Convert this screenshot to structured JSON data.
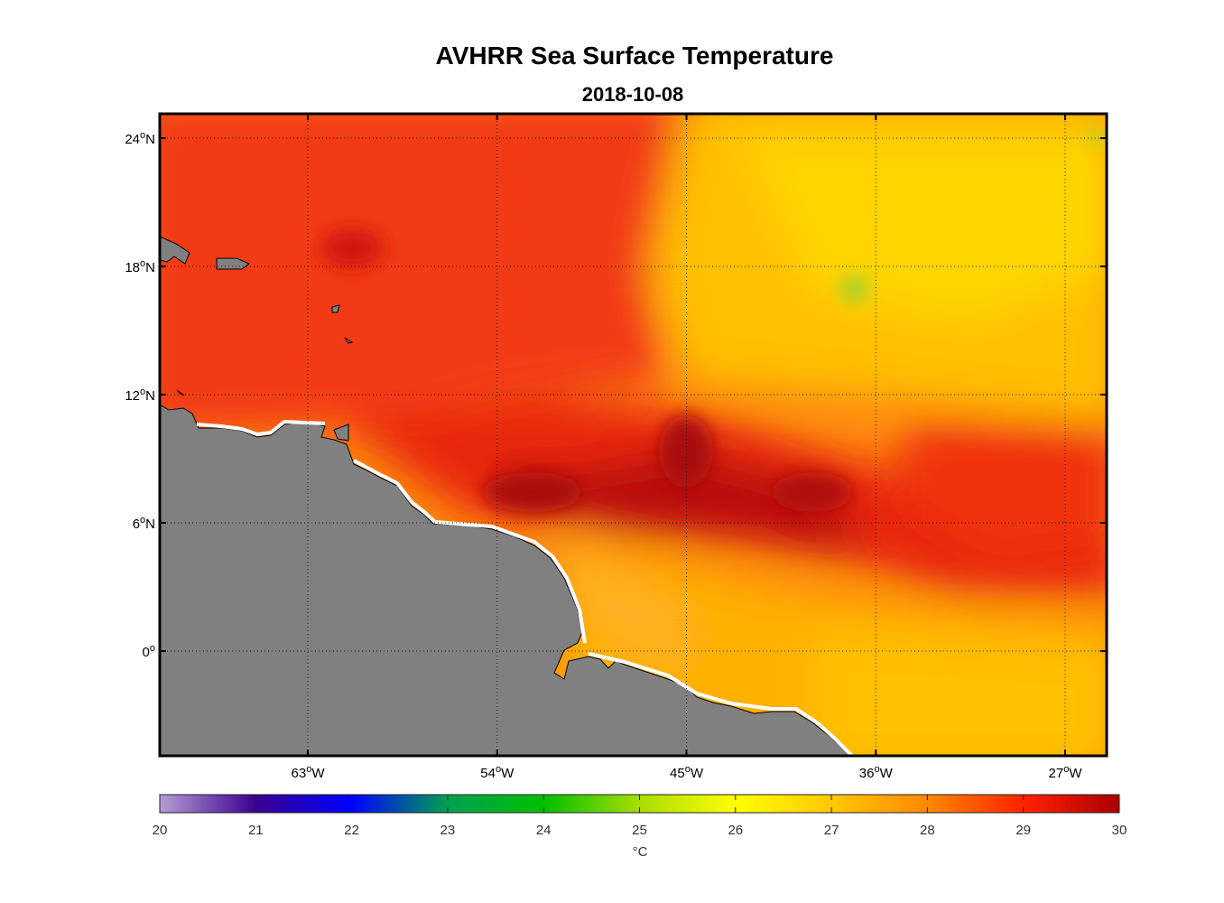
{
  "title": "AVHRR Sea Surface Temperature",
  "subtitle": "2018-10-08",
  "map": {
    "lat_ticks": [
      {
        "value": 24,
        "label": "24",
        "deg": "o",
        "hemi": "N"
      },
      {
        "value": 18,
        "label": "18",
        "deg": "o",
        "hemi": "N"
      },
      {
        "value": 12,
        "label": "12",
        "deg": "o",
        "hemi": "N"
      },
      {
        "value": 6,
        "label": "6",
        "deg": "o",
        "hemi": "N"
      },
      {
        "value": 0,
        "label": "0",
        "deg": "o",
        "hemi": ""
      }
    ],
    "lon_ticks": [
      {
        "value": -63,
        "label": "63",
        "deg": "o",
        "hemi": "W"
      },
      {
        "value": -54,
        "label": "54",
        "deg": "o",
        "hemi": "W"
      },
      {
        "value": -45,
        "label": "45",
        "deg": "o",
        "hemi": "W"
      },
      {
        "value": -36,
        "label": "36",
        "deg": "o",
        "hemi": "W"
      },
      {
        "value": -27,
        "label": "27",
        "deg": "o",
        "hemi": "W"
      }
    ],
    "land_color": "#808080",
    "gridlines": "dotted"
  },
  "colorbar": {
    "ticks": [
      "20",
      "21",
      "22",
      "23",
      "24",
      "25",
      "26",
      "27",
      "28",
      "29",
      "30"
    ],
    "unit": "°C",
    "stops": [
      "#b79bd3",
      "#3a0090",
      "#0000ff",
      "#00a050",
      "#00c000",
      "#aadd00",
      "#ffff00",
      "#ffc800",
      "#ff8800",
      "#ff2200",
      "#aa0000"
    ]
  }
}
